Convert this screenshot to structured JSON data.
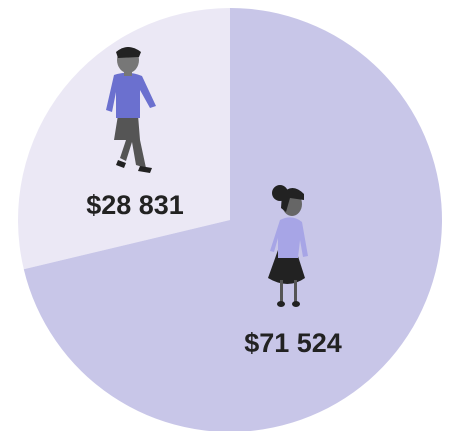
{
  "chart_data": {
    "type": "pie",
    "values": [
      28831,
      71524
    ],
    "value_labels": [
      "$28 831",
      "$71 524"
    ],
    "colors": [
      "#ebe8f5",
      "#c8c6e8"
    ]
  }
}
